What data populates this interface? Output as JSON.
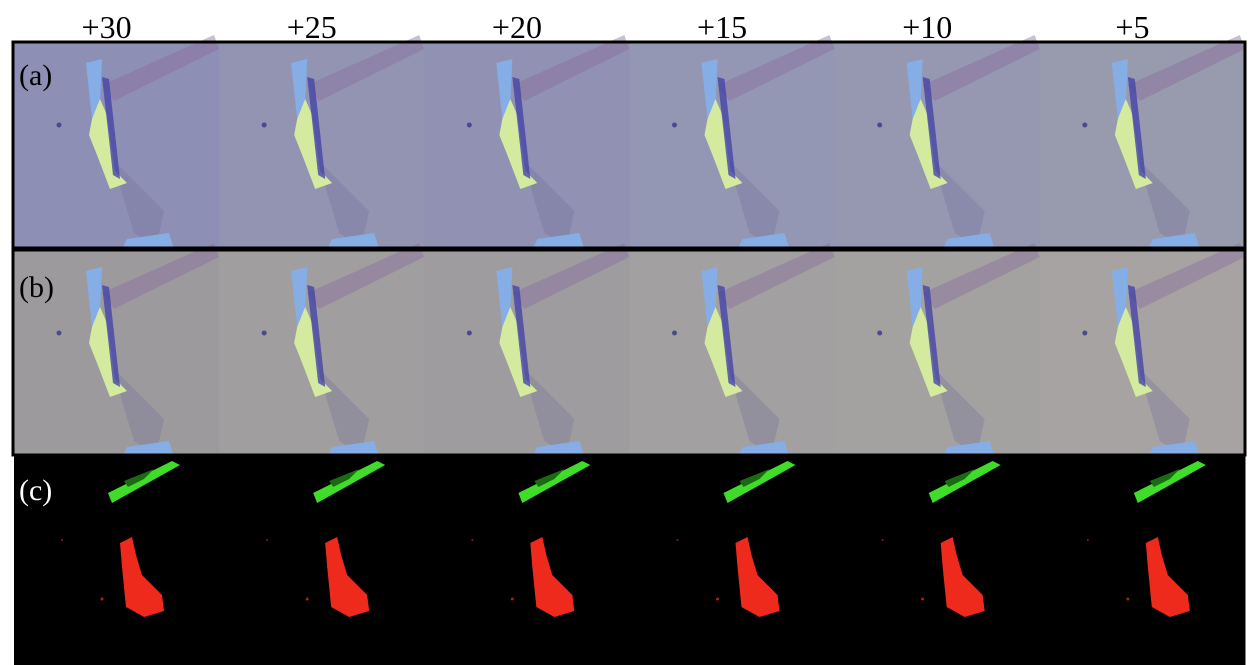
{
  "columns": [
    "+30",
    "+25",
    "+20",
    "+15",
    "+10",
    "+5"
  ],
  "rows": [
    "(a)",
    "(b)",
    "(c)"
  ]
}
